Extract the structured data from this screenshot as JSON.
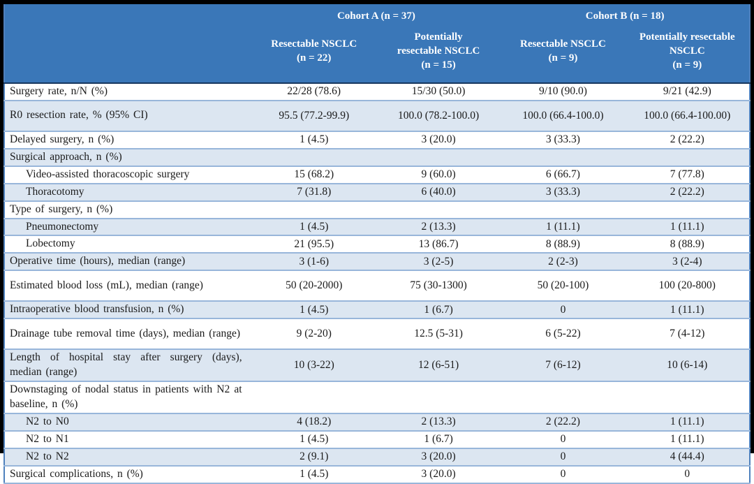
{
  "colors": {
    "frame": "#000000",
    "header_bg": "#3A77B8",
    "header_text": "#FFFFFF",
    "header_bottom_border": "#17375E",
    "alt_row_bg": "#DCE6F1",
    "row_border": "#98B6DA",
    "side_border": "#4F81BD",
    "body_text": "#1A1A1A"
  },
  "header": {
    "cohort_a": "Cohort A (n = 37)",
    "cohort_b": "Cohort B (n = 18)",
    "columns": [
      "Resectable NSCLC\n(n = 22)",
      "Potentially\nresectable NSCLC\n(n = 15)",
      "Resectable NSCLC\n(n = 9)",
      "Potentially resectable\nNSCLC\n(n = 9)"
    ]
  },
  "table": {
    "rows": [
      {
        "label": "Surgery rate, n/N (%)",
        "indent": false,
        "tall": false,
        "values": [
          "22/28 (78.6)",
          "15/30 (50.0)",
          "9/10 (90.0)",
          "9/21 (42.9)"
        ]
      },
      {
        "label": "R0 resection rate, % (95% CI)",
        "indent": false,
        "tall": true,
        "values": [
          "95.5 (77.2-99.9)",
          "100.0 (78.2-100.0)",
          "100.0 (66.4-100.0)",
          "100.0 (66.4-100.00)"
        ]
      },
      {
        "label": "Delayed surgery, n (%)",
        "indent": false,
        "tall": false,
        "values": [
          "1 (4.5)",
          "3 (20.0)",
          "3 (33.3)",
          "2 (22.2)"
        ]
      },
      {
        "label": "Surgical approach, n (%)",
        "indent": false,
        "tall": false,
        "values": [
          "",
          "",
          "",
          ""
        ]
      },
      {
        "label": "Video-assisted thoracoscopic surgery",
        "indent": true,
        "tall": false,
        "values": [
          "15 (68.2)",
          "9 (60.0)",
          "6 (66.7)",
          "7 (77.8)"
        ]
      },
      {
        "label": "Thoracotomy",
        "indent": true,
        "tall": false,
        "values": [
          "7 (31.8)",
          "6 (40.0)",
          "3 (33.3)",
          "2 (22.2)"
        ]
      },
      {
        "label": "Type of surgery, n (%)",
        "indent": false,
        "tall": false,
        "values": [
          "",
          "",
          "",
          ""
        ]
      },
      {
        "label": "Pneumonectomy",
        "indent": true,
        "tall": false,
        "values": [
          "1 (4.5)",
          "2 (13.3)",
          "1 (11.1)",
          "1 (11.1)"
        ]
      },
      {
        "label": "Lobectomy",
        "indent": true,
        "tall": false,
        "values": [
          "21 (95.5)",
          "13 (86.7)",
          "8 (88.9)",
          "8 (88.9)"
        ]
      },
      {
        "label": "Operative time (hours), median (range)",
        "indent": false,
        "tall": false,
        "values": [
          "3 (1-6)",
          "3 (2-5)",
          "2 (2-3)",
          "3 (2-4)"
        ]
      },
      {
        "label": "Estimated blood loss (mL), median (range)",
        "indent": false,
        "tall": true,
        "values": [
          "50 (20-2000)",
          "75 (30-1300)",
          "50 (20-100)",
          "100 (20-800)"
        ]
      },
      {
        "label": "Intraoperative blood transfusion, n (%)",
        "indent": false,
        "tall": false,
        "values": [
          "1 (4.5)",
          "1 (6.7)",
          "0",
          "1 (11.1)"
        ]
      },
      {
        "label": "Drainage tube removal time (days), median (range)",
        "indent": false,
        "tall": true,
        "values": [
          "9 (2-20)",
          "12.5 (5-31)",
          "6 (5-22)",
          "7 (4-12)"
        ]
      },
      {
        "label": "Length of hospital stay after surgery (days), median (range)",
        "indent": false,
        "tall": true,
        "values": [
          "10 (3-22)",
          "12 (6-51)",
          "7 (6-12)",
          "10 (6-14)"
        ]
      },
      {
        "label": "Downstaging of nodal status in patients with N2 at baseline, n (%)",
        "indent": false,
        "tall": true,
        "values": [
          "",
          "",
          "",
          ""
        ]
      },
      {
        "label": "N2 to N0",
        "indent": true,
        "tall": false,
        "values": [
          "4 (18.2)",
          "2 (13.3)",
          "2 (22.2)",
          "1 (11.1)"
        ]
      },
      {
        "label": "N2 to N1",
        "indent": true,
        "tall": false,
        "values": [
          "1 (4.5)",
          "1 (6.7)",
          "0",
          "1 (11.1)"
        ]
      },
      {
        "label": "N2 to N2",
        "indent": true,
        "tall": false,
        "values": [
          "2 (9.1)",
          "3 (20.0)",
          "0",
          "4 (44.4)"
        ]
      },
      {
        "label": "Surgical complications, n (%)",
        "indent": false,
        "tall": false,
        "values": [
          "1 (4.5)",
          "3 (20.0)",
          "0",
          "0"
        ]
      }
    ]
  }
}
